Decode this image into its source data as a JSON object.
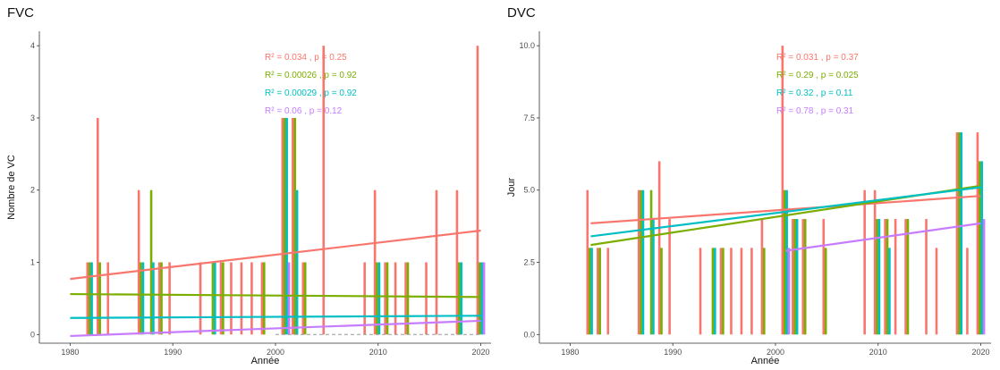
{
  "chart_data": [
    {
      "type": "bar",
      "title": "FVC",
      "xlabel": "Année",
      "ylabel": "Nombre de VC",
      "xlim": [
        1977,
        2021
      ],
      "ylim": [
        -0.12,
        4.2
      ],
      "x_ticks": [
        1980,
        1990,
        2000,
        2010,
        2020
      ],
      "y_ticks": [
        0,
        1,
        2,
        3,
        4
      ],
      "x_tick_labels": [
        "1980",
        "1990",
        "2000",
        "2010",
        "2020"
      ],
      "y_tick_labels": [
        "0",
        "1",
        "2",
        "3",
        "4"
      ],
      "grid": false,
      "series": [
        {
          "color": "#F8766D",
          "bars": [
            [
              1982,
              1
            ],
            [
              1983,
              3
            ],
            [
              1984,
              1
            ],
            [
              1987,
              2
            ],
            [
              1989,
              1
            ],
            [
              1990,
              1
            ],
            [
              1993,
              1
            ],
            [
              1995,
              1
            ],
            [
              1996,
              1
            ],
            [
              1997,
              1
            ],
            [
              1998,
              1
            ],
            [
              1999,
              1
            ],
            [
              2001,
              3
            ],
            [
              2002,
              3
            ],
            [
              2003,
              1
            ],
            [
              2005,
              4
            ],
            [
              2009,
              1
            ],
            [
              2010,
              2
            ],
            [
              2011,
              1
            ],
            [
              2012,
              1
            ],
            [
              2013,
              1
            ],
            [
              2015,
              1
            ],
            [
              2016,
              2
            ],
            [
              2018,
              2
            ],
            [
              2020,
              4
            ]
          ],
          "trend": [
            [
              1980,
              0.77
            ],
            [
              2020,
              1.44
            ]
          ],
          "annotation": "R² = 0.034 , p = 0.25",
          "r2": 0.034,
          "p": 0.25
        },
        {
          "color": "#7CAE00",
          "bars": [
            [
              1982,
              1
            ],
            [
              1983,
              1
            ],
            [
              1987,
              1
            ],
            [
              1988,
              2
            ],
            [
              1989,
              1
            ],
            [
              1994,
              1
            ],
            [
              1995,
              1
            ],
            [
              1999,
              1
            ],
            [
              2001,
              3
            ],
            [
              2002,
              3
            ],
            [
              2003,
              1
            ],
            [
              2010,
              1
            ],
            [
              2011,
              1
            ],
            [
              2013,
              1
            ],
            [
              2018,
              1
            ],
            [
              2020,
              1
            ]
          ],
          "trend": [
            [
              1980,
              0.56
            ],
            [
              2020,
              0.52
            ]
          ],
          "annotation": "R² = 0.00026 , p = 0.92",
          "r2": 0.00026,
          "p": 0.92
        },
        {
          "color": "#00BFC4",
          "bars": [
            [
              1982,
              1
            ],
            [
              1987,
              1
            ],
            [
              1988,
              1
            ],
            [
              1994,
              1
            ],
            [
              2001,
              3
            ],
            [
              2002,
              2
            ],
            [
              2010,
              1
            ],
            [
              2018,
              1
            ],
            [
              2020,
              1
            ]
          ],
          "trend": [
            [
              1980,
              0.23
            ],
            [
              2020,
              0.26
            ]
          ],
          "annotation": "R² = 0.00029 , p = 0.92",
          "r2": 0.00029,
          "p": 0.92
        },
        {
          "color": "#C77CFF",
          "bars": [
            [
              2001,
              1
            ],
            [
              2020,
              1
            ]
          ],
          "trend": [
            [
              1980,
              -0.02
            ],
            [
              2020,
              0.19
            ]
          ],
          "annotation": "R² = 0.06 , p = 0.12",
          "r2": 0.06,
          "p": 0.12
        }
      ]
    },
    {
      "type": "bar",
      "title": "DVC",
      "xlabel": "Année",
      "ylabel": "Jour",
      "xlim": [
        1977,
        2021
      ],
      "ylim": [
        -0.3,
        10.5
      ],
      "x_ticks": [
        1980,
        1990,
        2000,
        2010,
        2020
      ],
      "y_ticks": [
        0,
        2.5,
        5,
        7.5,
        10
      ],
      "x_tick_labels": [
        "1980",
        "1990",
        "2000",
        "2010",
        "2020"
      ],
      "y_tick_labels": [
        "0.0",
        "2.5",
        "5.0",
        "7.5",
        "10.0"
      ],
      "grid": false,
      "series": [
        {
          "color": "#F8766D",
          "bars": [
            [
              1982,
              5
            ],
            [
              1983,
              3
            ],
            [
              1984,
              3
            ],
            [
              1987,
              5
            ],
            [
              1989,
              6
            ],
            [
              1990,
              4
            ],
            [
              1993,
              3
            ],
            [
              1995,
              3
            ],
            [
              1996,
              3
            ],
            [
              1997,
              3
            ],
            [
              1998,
              3
            ],
            [
              1999,
              4
            ],
            [
              2001,
              10
            ],
            [
              2002,
              4
            ],
            [
              2003,
              4
            ],
            [
              2005,
              4
            ],
            [
              2009,
              5
            ],
            [
              2010,
              5
            ],
            [
              2011,
              4
            ],
            [
              2012,
              4
            ],
            [
              2013,
              4
            ],
            [
              2015,
              4
            ],
            [
              2016,
              3
            ],
            [
              2018,
              7
            ],
            [
              2019,
              3
            ],
            [
              2020,
              7
            ]
          ],
          "trend": [
            [
              1982,
              3.85
            ],
            [
              2020,
              4.8
            ]
          ],
          "annotation": "R² = 0.031 , p = 0.37",
          "r2": 0.031,
          "p": 0.37
        },
        {
          "color": "#7CAE00",
          "bars": [
            [
              1982,
              3
            ],
            [
              1983,
              3
            ],
            [
              1987,
              5
            ],
            [
              1988,
              5
            ],
            [
              1989,
              3
            ],
            [
              1994,
              3
            ],
            [
              1995,
              3
            ],
            [
              1999,
              3
            ],
            [
              2001,
              5
            ],
            [
              2002,
              4
            ],
            [
              2003,
              4
            ],
            [
              2005,
              3
            ],
            [
              2010,
              4
            ],
            [
              2011,
              4
            ],
            [
              2013,
              4
            ],
            [
              2018,
              7
            ],
            [
              2020,
              6
            ]
          ],
          "trend": [
            [
              1982,
              3.1
            ],
            [
              2020,
              5.15
            ]
          ],
          "annotation": "R² = 0.29 , p = 0.025",
          "r2": 0.29,
          "p": 0.025
        },
        {
          "color": "#00BFC4",
          "bars": [
            [
              1982,
              3
            ],
            [
              1987,
              5
            ],
            [
              1988,
              4
            ],
            [
              1994,
              3
            ],
            [
              2001,
              5
            ],
            [
              2002,
              4
            ],
            [
              2010,
              4
            ],
            [
              2011,
              3
            ],
            [
              2018,
              7
            ],
            [
              2020,
              6
            ]
          ],
          "trend": [
            [
              1982,
              3.4
            ],
            [
              2020,
              5.1
            ]
          ],
          "annotation": "R² = 0.32 , p = 0.11",
          "r2": 0.32,
          "p": 0.11
        },
        {
          "color": "#C77CFF",
          "bars": [
            [
              2001,
              3
            ],
            [
              2020,
              4
            ]
          ],
          "trend": [
            [
              2001,
              2.9
            ],
            [
              2020,
              3.85
            ]
          ],
          "annotation": "R² = 0.78 , p = 0.31",
          "r2": 0.78,
          "p": 0.31
        }
      ]
    }
  ]
}
